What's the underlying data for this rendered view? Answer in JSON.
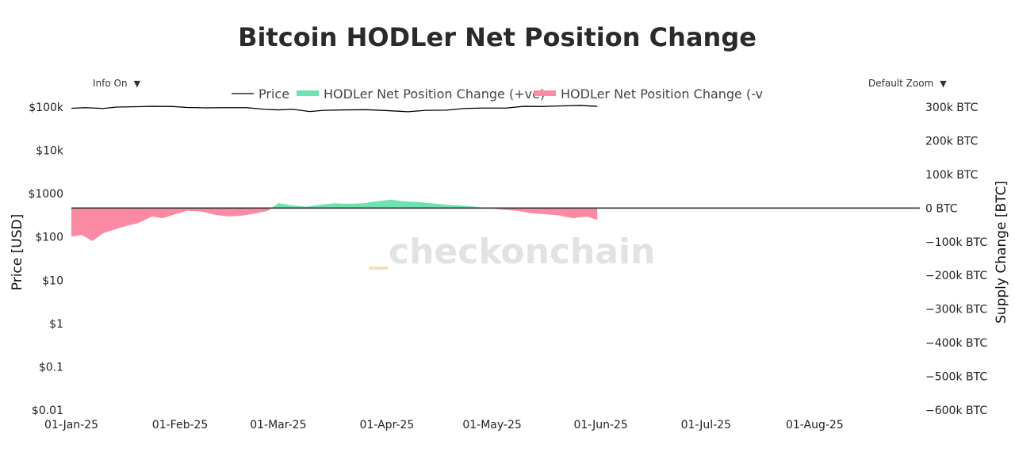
{
  "header": {
    "title": "Bitcoin HODLer Net Position Change"
  },
  "controls": {
    "info_label": "Info On",
    "info_arrow": "▼",
    "zoom_label": "Default Zoom",
    "zoom_arrow": "▼"
  },
  "watermark": {
    "text": "checkonchain"
  },
  "colors": {
    "positive": "#6ee3b0",
    "negative": "#fb8aa2",
    "price": "#000000",
    "zero_line": "#333333"
  },
  "chart_data": {
    "type": "area",
    "legend": [
      "Price",
      "HODLer Net Position Change (+ve)",
      "HODLer Net Position Change (-ve)"
    ],
    "legend_visible": [
      "Price",
      "HODLer Net Position Change (+ve)",
      "HODLer Net Position Change (-v"
    ],
    "legend_position": "top-center",
    "grid": false,
    "x_start": "2025-01-01",
    "x_end": "2025-08-31",
    "x_ticks": [
      "01-Jan-25",
      "01-Feb-25",
      "01-Mar-25",
      "01-Apr-25",
      "01-May-25",
      "01-Jun-25",
      "01-Jul-25",
      "01-Aug-25"
    ],
    "y_left": {
      "label": "Price [USD]",
      "scale": "log",
      "range": [
        0.01,
        100000
      ],
      "ticks": [
        "$0.01",
        "$0.1",
        "$1",
        "$10",
        "$100",
        "$1000",
        "$10k",
        "$100k"
      ]
    },
    "y_right": {
      "label": "Supply Change [BTC]",
      "range": [
        -600000,
        300000
      ],
      "ticks": [
        "300k BTC",
        "200k BTC",
        "100k BTC",
        "0 BTC",
        "−100k BTC",
        "−200k BTC",
        "−300k BTC",
        "−400k BTC",
        "−500k BTC",
        "−600k BTC"
      ]
    },
    "series": [
      {
        "name": "Price",
        "axis": "left",
        "dates": [
          "2025-01-01",
          "2025-01-05",
          "2025-01-10",
          "2025-01-14",
          "2025-01-20",
          "2025-01-24",
          "2025-01-30",
          "2025-02-03",
          "2025-02-08",
          "2025-02-14",
          "2025-02-20",
          "2025-02-25",
          "2025-03-01",
          "2025-03-05",
          "2025-03-10",
          "2025-03-14",
          "2025-03-20",
          "2025-03-26",
          "2025-04-01",
          "2025-04-07",
          "2025-04-12",
          "2025-04-18",
          "2025-04-23",
          "2025-04-28",
          "2025-05-05",
          "2025-05-10",
          "2025-05-15",
          "2025-05-20",
          "2025-05-26",
          "2025-05-31"
        ],
        "values": [
          94000,
          97000,
          93000,
          100000,
          102000,
          104000,
          103000,
          98000,
          96000,
          97000,
          97000,
          89000,
          86000,
          89000,
          79000,
          84000,
          86000,
          87000,
          83000,
          78000,
          84000,
          85000,
          93000,
          95000,
          95000,
          104000,
          103000,
          106000,
          109000,
          104000
        ]
      },
      {
        "name": "HODLer Net Position Change",
        "axis": "right",
        "dates": [
          "2025-01-01",
          "2025-01-04",
          "2025-01-07",
          "2025-01-10",
          "2025-01-13",
          "2025-01-16",
          "2025-01-20",
          "2025-01-24",
          "2025-01-27",
          "2025-01-30",
          "2025-02-03",
          "2025-02-07",
          "2025-02-11",
          "2025-02-15",
          "2025-02-19",
          "2025-02-23",
          "2025-02-26",
          "2025-03-01",
          "2025-03-05",
          "2025-03-09",
          "2025-03-13",
          "2025-03-17",
          "2025-03-21",
          "2025-03-25",
          "2025-03-29",
          "2025-04-02",
          "2025-04-06",
          "2025-04-10",
          "2025-04-14",
          "2025-04-18",
          "2025-04-22",
          "2025-04-26",
          "2025-04-30",
          "2025-05-04",
          "2025-05-08",
          "2025-05-12",
          "2025-05-16",
          "2025-05-20",
          "2025-05-24",
          "2025-05-28",
          "2025-05-31"
        ],
        "values": [
          -85000,
          -80000,
          -98000,
          -75000,
          -65000,
          -55000,
          -45000,
          -25000,
          -30000,
          -20000,
          -8000,
          -10000,
          -20000,
          -25000,
          -22000,
          -15000,
          -8000,
          15000,
          8000,
          4000,
          10000,
          14000,
          13000,
          14000,
          20000,
          25000,
          20000,
          18000,
          14000,
          10000,
          8000,
          4000,
          0,
          -5000,
          -8000,
          -15000,
          -18000,
          -22000,
          -30000,
          -25000,
          -35000
        ]
      }
    ]
  }
}
